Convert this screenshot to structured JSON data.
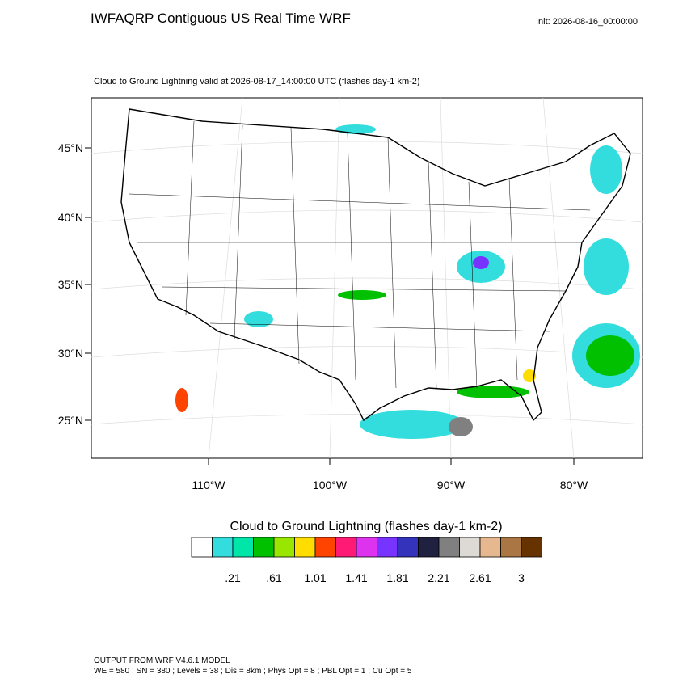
{
  "header": {
    "title": "IWFAQRP Contiguous US Real Time WRF",
    "init": "Init: 2026-08-16_00:00:00"
  },
  "map": {
    "subtitle": "Cloud to Ground Lightning valid at 2026-08-17_14:00:00 UTC   (flashes day-1 km-2)",
    "lat_labels": [
      "45°N",
      "40°N",
      "35°N",
      "30°N",
      "25°N"
    ],
    "lon_labels": [
      "110°W",
      "100°W",
      "90°W",
      "80°W"
    ]
  },
  "colorbar": {
    "title": "Cloud to Ground Lightning  (flashes day-1 km-2)",
    "colors": [
      "#ffffff",
      "#33dddd",
      "#00e6a8",
      "#00c000",
      "#99e600",
      "#ffdd00",
      "#ff4400",
      "#ff1a75",
      "#dd33ee",
      "#7733ff",
      "#3333bb",
      "#202040",
      "#808080",
      "#dddad5",
      "#e6b88f",
      "#aa7744",
      "#663300"
    ],
    "labels": [
      ".21",
      ".61",
      "1.01",
      "1.41",
      "1.81",
      "2.21",
      "2.61",
      "3"
    ]
  },
  "footer": {
    "line1": "OUTPUT FROM WRF V4.6.1 MODEL",
    "line2": "WE = 580 ; SN = 380 ; Levels = 38 ; Dis = 8km ; Phys Opt = 8 ; PBL Opt = 1 ; Cu Opt = 5"
  }
}
